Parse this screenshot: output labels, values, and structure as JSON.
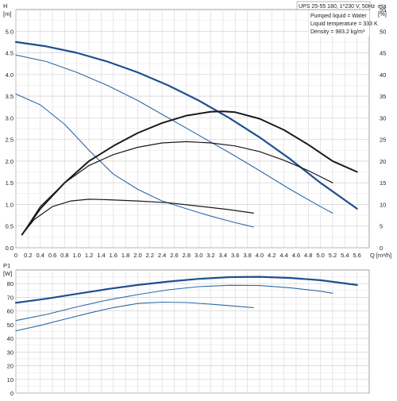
{
  "chart_data": [
    {
      "type": "line",
      "title": "UPS 25-55 180, 1*230 V, 50Hz",
      "info": [
        "Pumped liquid = Water",
        "Liquid temperature = 333 K",
        "Density = 983.2 kg/m³"
      ],
      "xlabel": "Q [m³/h]",
      "ylabel": "H [m]",
      "y2label": "eta [%]",
      "xlim": [
        0,
        5.8
      ],
      "ylim": [
        0,
        5.5
      ],
      "y2lim": [
        0,
        55
      ],
      "x_ticks": [
        "0",
        "0.2",
        "0.4",
        "0.6",
        "0.8",
        "1.0",
        "1.2",
        "1.4",
        "1.6",
        "1.8",
        "2.0",
        "2.2",
        "2.4",
        "2.6",
        "2.8",
        "3.0",
        "3.2",
        "3.4",
        "3.6",
        "3.8",
        "4.0",
        "4.2",
        "4.4",
        "4.6",
        "4.8",
        "5.0",
        "5.2",
        "5.4",
        "5.6"
      ],
      "y_ticks": [
        "0.0",
        "0.5",
        "1.0",
        "1.5",
        "2.0",
        "2.5",
        "3.0",
        "3.5",
        "4.0",
        "4.5",
        "5.0"
      ],
      "y2_ticks": [
        "0",
        "5",
        "10",
        "15",
        "20",
        "25",
        "30",
        "35",
        "40",
        "45",
        "50",
        "55"
      ],
      "grid": true,
      "series": [
        {
          "axis": "left",
          "color": "#1f4f8f",
          "width": 2.2,
          "x": [
            0,
            0.5,
            1.0,
            1.5,
            2.0,
            2.5,
            3.0,
            3.5,
            4.0,
            4.5,
            5.0,
            5.6
          ],
          "y": [
            4.75,
            4.65,
            4.5,
            4.3,
            4.05,
            3.75,
            3.4,
            3.0,
            2.55,
            2.05,
            1.5,
            0.9
          ]
        },
        {
          "axis": "left",
          "color": "#2d6aa8",
          "width": 1.1,
          "x": [
            0,
            0.5,
            1.0,
            1.5,
            2.0,
            2.5,
            3.0,
            3.5,
            4.0,
            4.5,
            5.0,
            5.2
          ],
          "y": [
            4.45,
            4.3,
            4.05,
            3.75,
            3.4,
            3.0,
            2.6,
            2.2,
            1.78,
            1.35,
            0.95,
            0.8
          ]
        },
        {
          "axis": "left",
          "color": "#2d6aa8",
          "width": 1.1,
          "x": [
            0,
            0.4,
            0.8,
            1.2,
            1.6,
            2.0,
            2.4,
            2.8,
            3.2,
            3.6,
            3.9
          ],
          "y": [
            3.55,
            3.3,
            2.85,
            2.25,
            1.7,
            1.35,
            1.08,
            0.9,
            0.73,
            0.58,
            0.48
          ]
        },
        {
          "axis": "right",
          "color": "#1a1a1a",
          "width": 2.0,
          "x": [
            0.1,
            0.4,
            0.8,
            1.2,
            1.6,
            2.0,
            2.4,
            2.8,
            3.2,
            3.4,
            3.6,
            4.0,
            4.4,
            4.8,
            5.2,
            5.6
          ],
          "y": [
            3,
            9,
            15,
            20,
            23.5,
            26.5,
            28.8,
            30.5,
            31.4,
            31.5,
            31.3,
            29.8,
            27.2,
            23.8,
            20,
            17.5
          ]
        },
        {
          "axis": "right",
          "color": "#1a1a1a",
          "width": 1.2,
          "x": [
            0.1,
            0.4,
            0.8,
            1.2,
            1.6,
            2.0,
            2.4,
            2.8,
            3.2,
            3.6,
            4.0,
            4.4,
            4.8,
            5.2
          ],
          "y": [
            3,
            9.5,
            15,
            19,
            21.5,
            23.2,
            24.2,
            24.5,
            24.2,
            23.5,
            22.2,
            20.2,
            17.8,
            15
          ]
        },
        {
          "axis": "right",
          "color": "#1a1a1a",
          "width": 1.2,
          "x": [
            0.1,
            0.3,
            0.6,
            0.9,
            1.2,
            1.5,
            2.0,
            2.5,
            3.0,
            3.5,
            3.9
          ],
          "y": [
            3,
            6.5,
            9.5,
            10.8,
            11.2,
            11.1,
            10.8,
            10.4,
            9.6,
            8.8,
            8.0
          ]
        }
      ]
    },
    {
      "type": "line",
      "ylabel": "P1 [W]",
      "xlim": [
        0,
        5.8
      ],
      "ylim": [
        0,
        90
      ],
      "y_ticks": [
        "0",
        "10",
        "20",
        "30",
        "40",
        "50",
        "60",
        "70",
        "80"
      ],
      "grid": true,
      "series": [
        {
          "color": "#1f4f8f",
          "width": 2.2,
          "x": [
            0,
            0.5,
            1.0,
            1.5,
            2.0,
            2.5,
            3.0,
            3.5,
            4.0,
            4.5,
            5.0,
            5.6
          ],
          "y": [
            66,
            69,
            72.5,
            76,
            79,
            81.5,
            83.5,
            84.8,
            85,
            84.2,
            82.5,
            79
          ]
        },
        {
          "color": "#2d6aa8",
          "width": 1.1,
          "x": [
            0,
            0.5,
            1.0,
            1.5,
            2.0,
            2.5,
            3.0,
            3.5,
            4.0,
            4.5,
            5.0,
            5.2
          ],
          "y": [
            53,
            57.5,
            63,
            68,
            72,
            75.5,
            77.8,
            78.8,
            78.6,
            77,
            74.5,
            73
          ]
        },
        {
          "color": "#2d6aa8",
          "width": 1.1,
          "x": [
            0,
            0.4,
            0.8,
            1.2,
            1.6,
            2.0,
            2.4,
            2.8,
            3.2,
            3.6,
            3.9
          ],
          "y": [
            45.5,
            49.5,
            54,
            58.5,
            62.5,
            65.5,
            66.5,
            66.2,
            65,
            63.5,
            62.5
          ]
        }
      ]
    }
  ]
}
